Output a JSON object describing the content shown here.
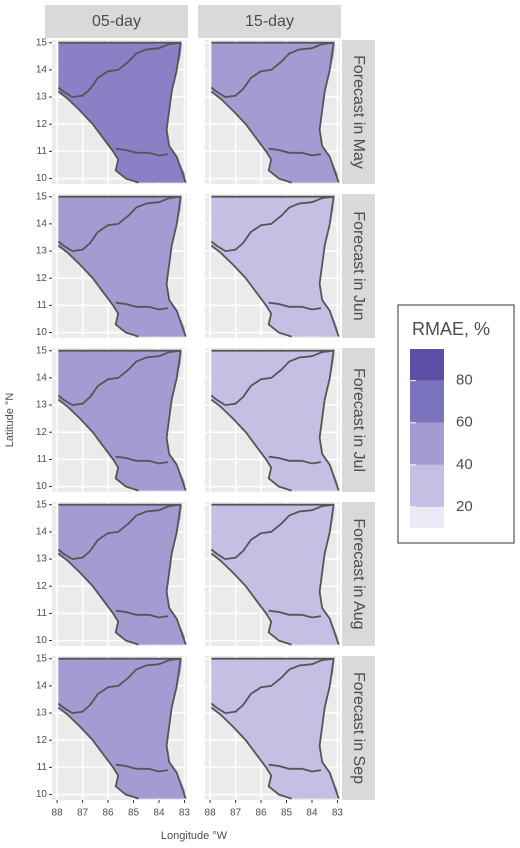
{
  "chart_data": {
    "type": "facet-map",
    "columns": [
      "05-day",
      "15-day"
    ],
    "rows": [
      "Forecast in May",
      "Forecast in Jun",
      "Forecast in Jul",
      "Forecast in Aug",
      "Forecast in Sep"
    ],
    "x_label": "Longitude °W",
    "y_label": "Latitude °N",
    "xlim": [
      88.2,
      82.9
    ],
    "xticks": [
      88,
      87,
      86,
      85,
      84,
      83
    ],
    "ylim": [
      9.8,
      15.1
    ],
    "yticks": [
      10,
      11,
      12,
      13,
      14,
      15
    ],
    "grid": true,
    "panel_fill": [
      [
        "#8a80c6",
        "#a39bd2"
      ],
      [
        "#a39bd2",
        "#c5c0e3"
      ],
      [
        "#a39bd2",
        "#c5c0e3"
      ],
      [
        "#a39bd2",
        "#c5c0e3"
      ],
      [
        "#a39bd2",
        "#c5c0e3"
      ]
    ],
    "legend": {
      "title": "RMAE, %",
      "limits": [
        10,
        95
      ],
      "breaks": [
        20,
        40,
        60,
        80
      ],
      "colors": [
        "#ebe9f4",
        "#c5c0e3",
        "#a39bd2",
        "#7b72bd",
        "#5b4fa6"
      ]
    }
  }
}
